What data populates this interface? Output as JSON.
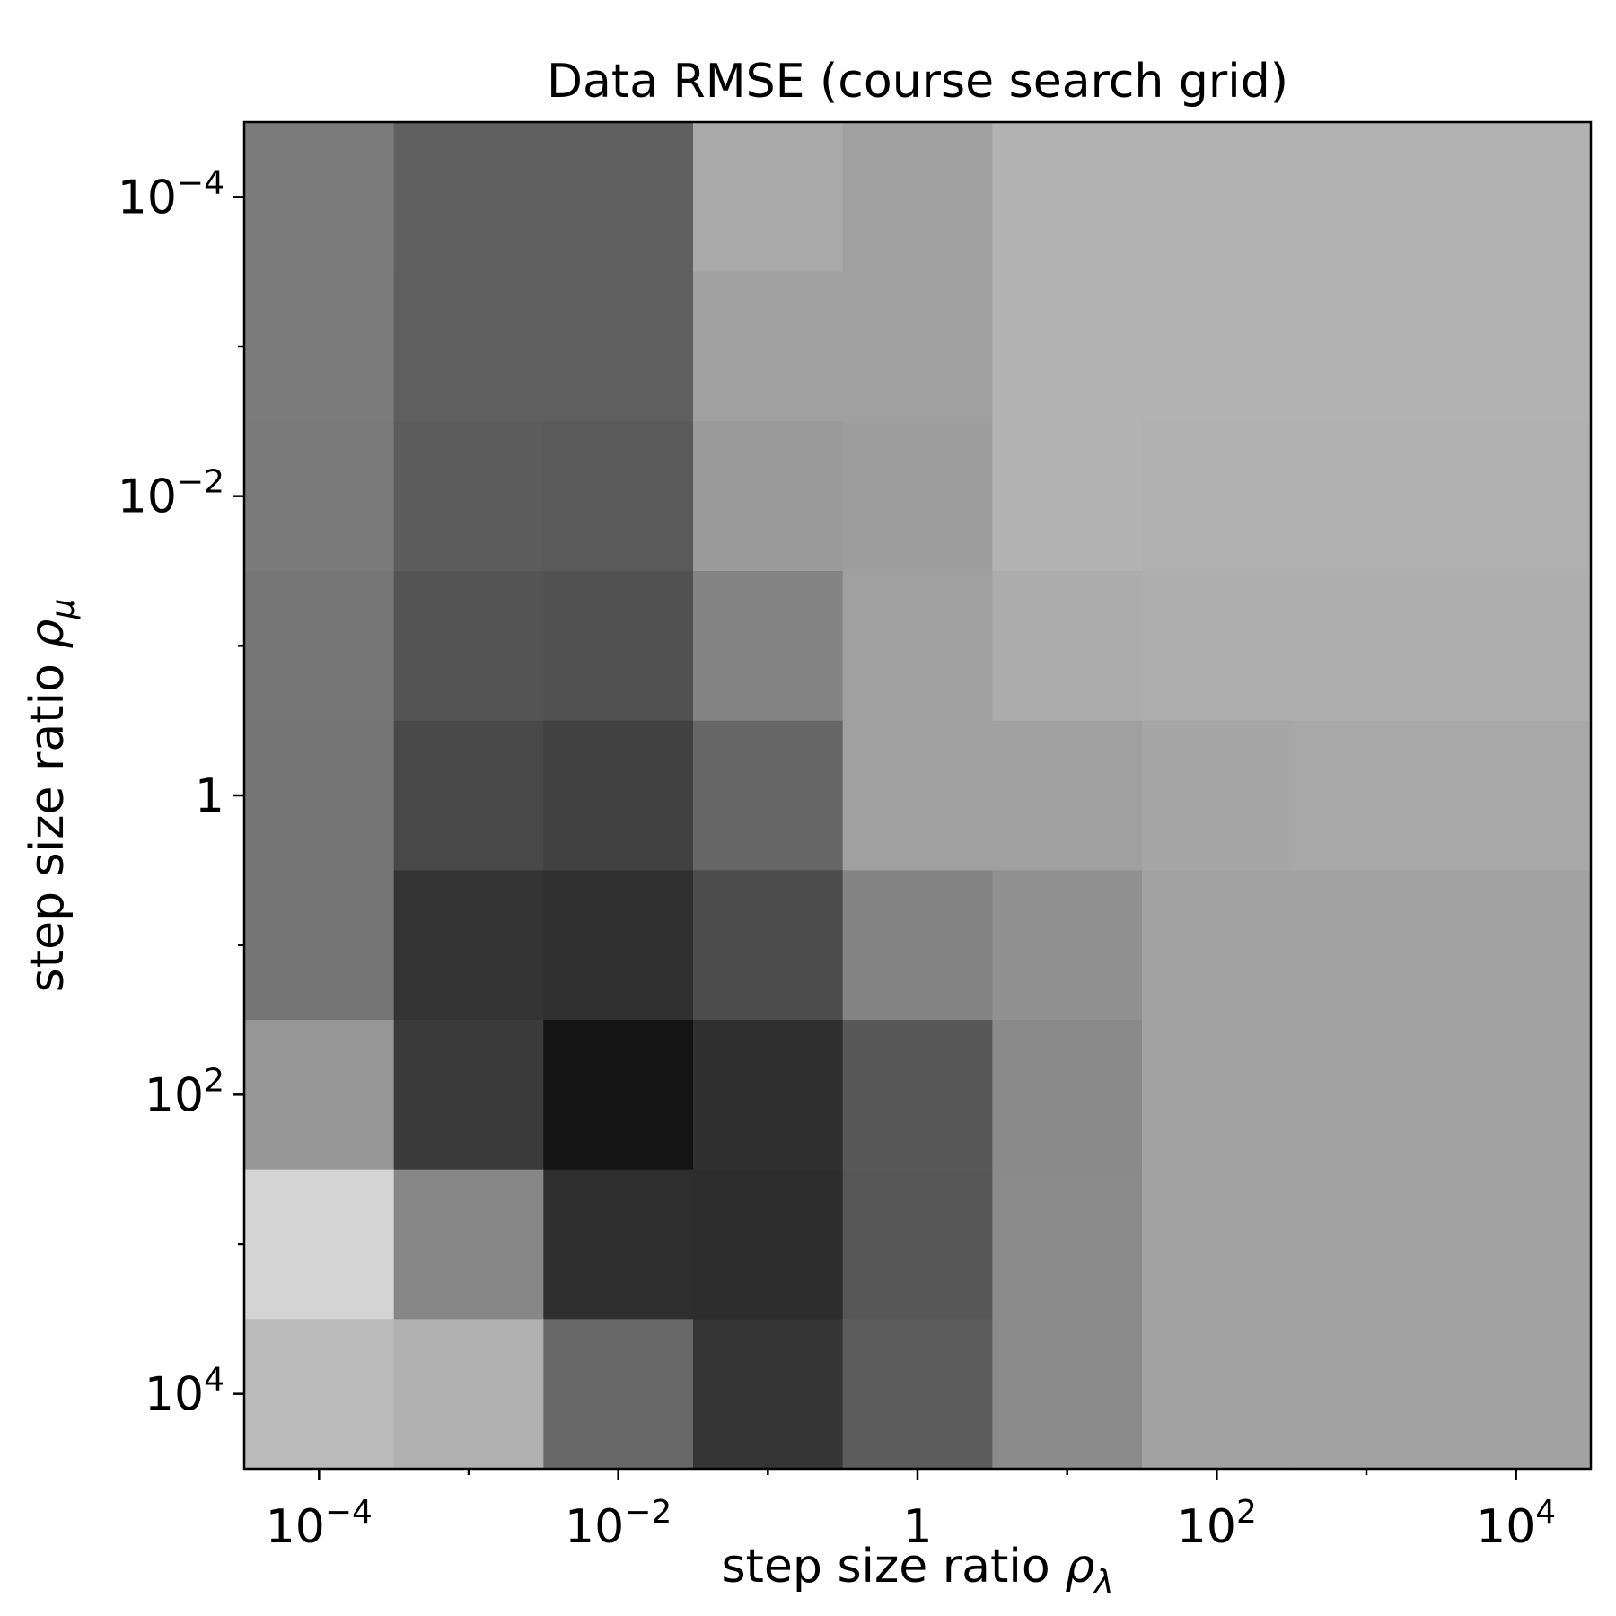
{
  "chart_data": {
    "type": "heatmap",
    "title": "Data RMSE (course search grid)",
    "xlabel": "step size ratio",
    "xlabel_symbol": "ρ",
    "xlabel_subscript": "λ",
    "ylabel": "step size ratio",
    "ylabel_symbol": "ρ",
    "ylabel_subscript": "μ",
    "x_scale": "log",
    "y_scale": "log",
    "y_inverted": true,
    "colormap": "grayscale (gray level of each cell shown; darker = lower)",
    "grid": false,
    "x_values": [
      0.0001,
      0.001,
      0.01,
      0.1,
      1,
      10,
      100,
      1000,
      10000
    ],
    "y_values": [
      0.0001,
      0.001,
      0.01,
      0.1,
      1,
      10,
      100,
      1000,
      10000
    ],
    "x_ticks": [
      {
        "value": 0.0001,
        "base": "10",
        "exp": "−4"
      },
      {
        "value": 0.01,
        "base": "10",
        "exp": "−2"
      },
      {
        "value": 1,
        "base": "1",
        "exp": ""
      },
      {
        "value": 100,
        "base": "10",
        "exp": "2"
      },
      {
        "value": 10000,
        "base": "10",
        "exp": "4"
      }
    ],
    "y_ticks": [
      {
        "value": 0.0001,
        "base": "10",
        "exp": "−4"
      },
      {
        "value": 0.01,
        "base": "10",
        "exp": "−2"
      },
      {
        "value": 1,
        "base": "1",
        "exp": ""
      },
      {
        "value": 100,
        "base": "10",
        "exp": "2"
      },
      {
        "value": 10000,
        "base": "10",
        "exp": "4"
      }
    ],
    "x_minor_ticks": [
      0.001,
      0.1,
      10,
      1000
    ],
    "y_minor_ticks": [
      0.001,
      0.1,
      10,
      1000
    ],
    "gray_levels": [
      [
        123,
        96,
        96,
        170,
        160,
        178,
        178,
        178,
        178
      ],
      [
        123,
        95,
        95,
        160,
        160,
        178,
        178,
        178,
        178
      ],
      [
        122,
        92,
        90,
        154,
        158,
        178,
        176,
        176,
        176
      ],
      [
        118,
        84,
        81,
        132,
        160,
        172,
        174,
        174,
        174
      ],
      [
        117,
        72,
        65,
        102,
        160,
        160,
        166,
        168,
        168
      ],
      [
        117,
        51,
        48,
        76,
        132,
        145,
        162,
        162,
        162
      ],
      [
        150,
        58,
        20,
        47,
        88,
        138,
        162,
        162,
        162
      ],
      [
        212,
        134,
        46,
        45,
        87,
        139,
        162,
        162,
        162
      ],
      [
        186,
        176,
        104,
        53,
        92,
        139,
        162,
        162,
        162
      ]
    ]
  }
}
